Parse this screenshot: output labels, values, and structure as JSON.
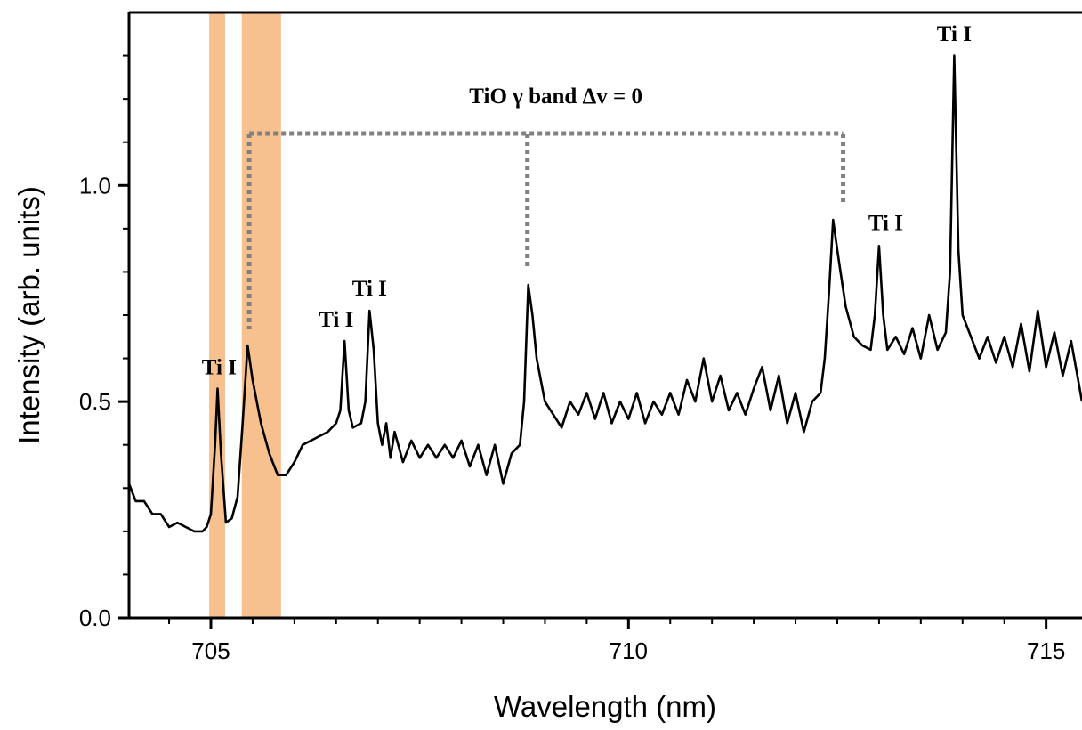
{
  "chart_data": {
    "type": "line",
    "xlabel": "Wavelength (nm)",
    "ylabel": "Intensity (arb. units)",
    "color": "#000000",
    "xlim": [
      704.02,
      715.43
    ],
    "ylim": [
      0,
      1.4
    ],
    "xticks": [
      705,
      710,
      715
    ],
    "yticks": [
      {
        "value": 0,
        "label": "0.0"
      },
      0.5,
      {
        "value": 1,
        "label": "1.0"
      }
    ],
    "x_minor_ticks": [
      704.5,
      705.5,
      706,
      706.5,
      707,
      707.5,
      708,
      708.5,
      709,
      709.5,
      710.5,
      711,
      711.5,
      712,
      712.5,
      713,
      713.5,
      714,
      714.5,
      715
    ],
    "y_minor_ticks": [
      0.1,
      0.2,
      0.3,
      0.4,
      0.6,
      0.7,
      0.8,
      0.9,
      1.1,
      1.2,
      1.3
    ],
    "span_color": "#f7c08f",
    "spans": [
      [
        704.98,
        705.17
      ],
      [
        705.37,
        705.84
      ]
    ],
    "bracket": {
      "color": "#808080",
      "y": 1.12,
      "legs": [
        {
          "x": 705.46,
          "y": 0.667
        },
        {
          "x": 708.79,
          "y": 0.81
        },
        {
          "x": 712.57,
          "y": 0.955
        }
      ]
    },
    "annotations": [
      {
        "text": "Ti I",
        "x": 705.1,
        "y": 0.575
      },
      {
        "text": "Ti I",
        "x": 706.5,
        "y": 0.685
      },
      {
        "text": "Ti I",
        "x": 706.9,
        "y": 0.757
      },
      {
        "text": "Ti I",
        "x": 713.08,
        "y": 0.908
      },
      {
        "text": "Ti I",
        "x": 713.9,
        "y": 1.346
      },
      {
        "text": "TiO γ band Δv = 0",
        "x": 709.13,
        "y": 1.202
      }
    ],
    "x": [
      704.02,
      704.1,
      704.2,
      704.3,
      704.4,
      704.5,
      704.6,
      704.7,
      704.8,
      704.9,
      704.95,
      705.0,
      705.05,
      705.08,
      705.12,
      705.18,
      705.25,
      705.32,
      705.38,
      705.44,
      705.5,
      705.6,
      705.7,
      705.8,
      705.9,
      706.0,
      706.1,
      706.2,
      706.3,
      706.4,
      706.5,
      706.55,
      706.6,
      706.65,
      706.7,
      706.8,
      706.85,
      706.9,
      706.95,
      707.0,
      707.05,
      707.1,
      707.15,
      707.2,
      707.3,
      707.4,
      707.5,
      707.6,
      707.7,
      707.8,
      707.9,
      708.0,
      708.1,
      708.2,
      708.3,
      708.4,
      708.5,
      708.6,
      708.7,
      708.75,
      708.8,
      708.85,
      708.9,
      709.0,
      709.1,
      709.2,
      709.3,
      709.4,
      709.5,
      709.6,
      709.7,
      709.8,
      709.9,
      710.0,
      710.1,
      710.2,
      710.3,
      710.4,
      710.5,
      710.6,
      710.7,
      710.8,
      710.9,
      711.0,
      711.1,
      711.2,
      711.3,
      711.4,
      711.5,
      711.6,
      711.7,
      711.8,
      711.9,
      712.0,
      712.1,
      712.2,
      712.3,
      712.35,
      712.4,
      712.45,
      712.5,
      712.6,
      712.7,
      712.8,
      712.9,
      712.95,
      713.0,
      713.05,
      713.1,
      713.2,
      713.3,
      713.4,
      713.5,
      713.6,
      713.7,
      713.8,
      713.85,
      713.9,
      713.95,
      714.0,
      714.1,
      714.2,
      714.3,
      714.4,
      714.5,
      714.6,
      714.7,
      714.8,
      714.9,
      715.0,
      715.1,
      715.2,
      715.3,
      715.43
    ],
    "values": [
      0.31,
      0.27,
      0.27,
      0.24,
      0.24,
      0.21,
      0.22,
      0.21,
      0.2,
      0.2,
      0.21,
      0.24,
      0.4,
      0.53,
      0.38,
      0.22,
      0.23,
      0.28,
      0.45,
      0.63,
      0.55,
      0.45,
      0.38,
      0.33,
      0.33,
      0.36,
      0.4,
      0.41,
      0.42,
      0.43,
      0.45,
      0.48,
      0.64,
      0.48,
      0.44,
      0.45,
      0.5,
      0.71,
      0.62,
      0.45,
      0.4,
      0.45,
      0.37,
      0.43,
      0.36,
      0.41,
      0.37,
      0.4,
      0.37,
      0.4,
      0.37,
      0.41,
      0.35,
      0.4,
      0.33,
      0.4,
      0.31,
      0.38,
      0.4,
      0.5,
      0.77,
      0.7,
      0.6,
      0.5,
      0.47,
      0.44,
      0.5,
      0.47,
      0.52,
      0.46,
      0.52,
      0.45,
      0.5,
      0.46,
      0.52,
      0.45,
      0.5,
      0.47,
      0.52,
      0.47,
      0.55,
      0.5,
      0.6,
      0.5,
      0.56,
      0.48,
      0.52,
      0.47,
      0.53,
      0.58,
      0.48,
      0.56,
      0.45,
      0.52,
      0.43,
      0.5,
      0.52,
      0.6,
      0.75,
      0.92,
      0.85,
      0.72,
      0.65,
      0.63,
      0.62,
      0.7,
      0.86,
      0.7,
      0.62,
      0.65,
      0.61,
      0.67,
      0.6,
      0.7,
      0.62,
      0.66,
      0.8,
      1.3,
      0.85,
      0.7,
      0.65,
      0.6,
      0.65,
      0.59,
      0.65,
      0.58,
      0.68,
      0.57,
      0.71,
      0.58,
      0.66,
      0.56,
      0.64,
      0.5
    ]
  }
}
